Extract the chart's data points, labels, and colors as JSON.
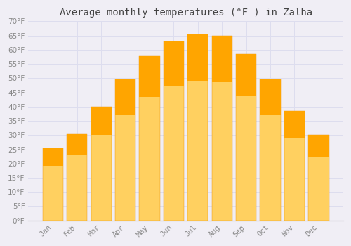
{
  "title": "Average monthly temperatures (°F ) in Zalha",
  "months": [
    "Jan",
    "Feb",
    "Mar",
    "Apr",
    "May",
    "Jun",
    "Jul",
    "Aug",
    "Sep",
    "Oct",
    "Nov",
    "Dec"
  ],
  "values": [
    25.5,
    30.5,
    40.0,
    49.5,
    58.0,
    63.0,
    65.5,
    65.0,
    58.5,
    49.5,
    38.5,
    30.0
  ],
  "bar_color_top": "#FFA500",
  "bar_color_bottom": "#FFD060",
  "bar_edge_color": "#E89000",
  "background_color": "#F0EEF5",
  "grid_color": "#DDDDEE",
  "text_color": "#888888",
  "title_color": "#444444",
  "ylim": [
    0,
    70
  ],
  "yticks": [
    0,
    5,
    10,
    15,
    20,
    25,
    30,
    35,
    40,
    45,
    50,
    55,
    60,
    65,
    70
  ],
  "title_fontsize": 10,
  "tick_fontsize": 7.5
}
